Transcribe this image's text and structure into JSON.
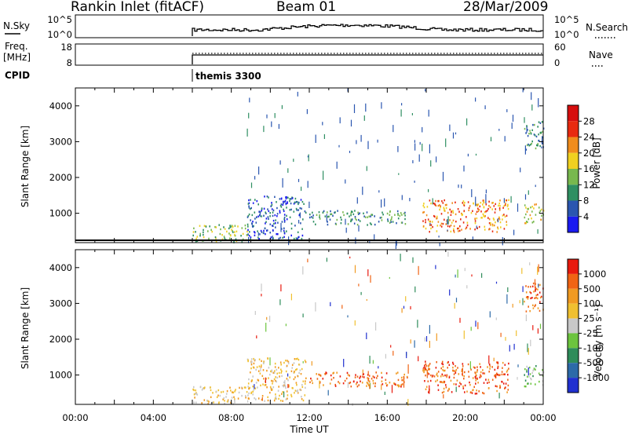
{
  "header": {
    "station": "Rankin Inlet (fitACF)",
    "beam": "Beam 01",
    "date": "28/Mar/2009"
  },
  "summary": {
    "nsky_label": "N.Sky",
    "nsky_ticks": [
      "10^5",
      "10^0"
    ],
    "nsearch_label": "N.Search",
    "nsearch_ticks": [
      "10^5",
      "10^0"
    ],
    "freq_label": "Freq.",
    "freq_unit": "[MHz]",
    "freq_ticks": [
      "18",
      "8"
    ],
    "nave_label": "Nave",
    "nave_ticks": [
      "60",
      "0"
    ],
    "cpid_label": "CPID",
    "cpid_value": "themis 3300",
    "data_start_hour": 6.0
  },
  "chart_data": [
    {
      "type": "heatmap",
      "panel": "power",
      "ylabel": "Slant Range [km]",
      "xlim": [
        0,
        24
      ],
      "ylim": [
        180,
        4500
      ],
      "yticks": [
        1000,
        2000,
        3000,
        4000
      ],
      "colorbar": {
        "label": "Power [dB]",
        "ticks": [
          "4",
          "8",
          "12",
          "16",
          "20",
          "24",
          "28"
        ],
        "colors": [
          "#1a1af0",
          "#2a56b0",
          "#2f8f62",
          "#78b84e",
          "#f0d020",
          "#f08c1c",
          "#e82a10",
          "#d60e0e"
        ]
      },
      "regions": [
        {
          "h0": 6.0,
          "h1": 8.8,
          "r0": 200,
          "r1": 700,
          "level": 3
        },
        {
          "h0": 8.8,
          "h1": 11.8,
          "r0": 300,
          "r1": 1500,
          "level": 1
        },
        {
          "h0": 12.0,
          "h1": 17.0,
          "r0": 700,
          "r1": 1100,
          "level": 2
        },
        {
          "h0": 17.8,
          "h1": 22.2,
          "r0": 500,
          "r1": 1400,
          "level": 5
        },
        {
          "h0": 23.0,
          "h1": 24.0,
          "r0": 700,
          "r1": 1300,
          "level": 4
        },
        {
          "h0": 23.0,
          "h1": 24.0,
          "r0": 2800,
          "r1": 3600,
          "level": 2
        }
      ]
    },
    {
      "type": "heatmap",
      "panel": "velocity",
      "ylabel": "Slant Range [km]",
      "xlabel": "Time UT",
      "xlim": [
        0,
        24
      ],
      "ylim": [
        180,
        4500
      ],
      "yticks": [
        1000,
        2000,
        3000,
        4000
      ],
      "xticks": [
        "00:00",
        "04:00",
        "08:00",
        "12:00",
        "16:00",
        "20:00",
        "00:00"
      ],
      "colorbar": {
        "label": "Velocity [m s⁻¹]",
        "ticks": [
          "1000",
          "500",
          "100",
          "25",
          "-25",
          "-100",
          "-500",
          "-1000"
        ],
        "colors": [
          "#2030d0",
          "#2c6aa8",
          "#2e8c5a",
          "#6cc43e",
          "#c8c8c8",
          "#f0c030",
          "#f09a22",
          "#f06414",
          "#e81a0e"
        ]
      },
      "regions": [
        {
          "h0": 6.0,
          "h1": 8.8,
          "r0": 200,
          "r1": 700,
          "level": 5
        },
        {
          "h0": 8.8,
          "h1": 11.8,
          "r0": 300,
          "r1": 1500,
          "level": 5
        },
        {
          "h0": 12.0,
          "h1": 17.0,
          "r0": 700,
          "r1": 1100,
          "level": 7
        },
        {
          "h0": 17.8,
          "h1": 22.2,
          "r0": 500,
          "r1": 1400,
          "level": 7
        },
        {
          "h0": 23.0,
          "h1": 24.0,
          "r0": 700,
          "r1": 1300,
          "level": 3
        },
        {
          "h0": 23.0,
          "h1": 24.0,
          "r0": 2800,
          "r1": 3600,
          "level": 7
        }
      ]
    }
  ]
}
